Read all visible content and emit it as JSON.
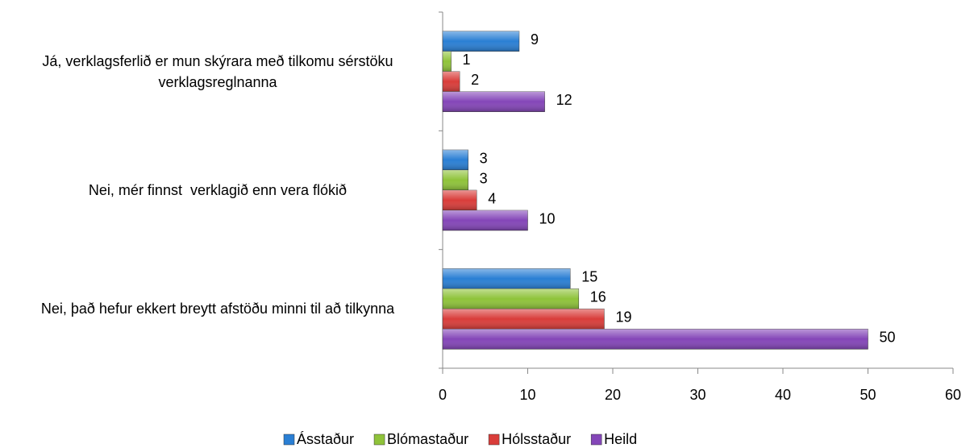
{
  "chart_data": {
    "type": "hbar",
    "categories": [
      "Já, verklagsferlið er mun skýrara með tilkomu sérstöku verklagsreglnanna",
      "Nei, mér finnst  verklagið enn vera flókið",
      "Nei, það hefur ekkert breytt afstöðu minni til að tilkynna"
    ],
    "series": [
      {
        "name": "Ásstaður",
        "color": "#2a7fd4",
        "values": [
          9,
          3,
          15
        ]
      },
      {
        "name": "Blómastaður",
        "color": "#8fc33a",
        "values": [
          1,
          3,
          16
        ]
      },
      {
        "name": "Hólsstaður",
        "color": "#d93d3a",
        "values": [
          2,
          4,
          19
        ]
      },
      {
        "name": "Heild",
        "color": "#8446b8",
        "values": [
          12,
          10,
          50
        ]
      }
    ],
    "xlim": [
      0,
      60
    ],
    "xticks": [
      0,
      10,
      20,
      30,
      40,
      50,
      60
    ],
    "legend": "bottom"
  }
}
